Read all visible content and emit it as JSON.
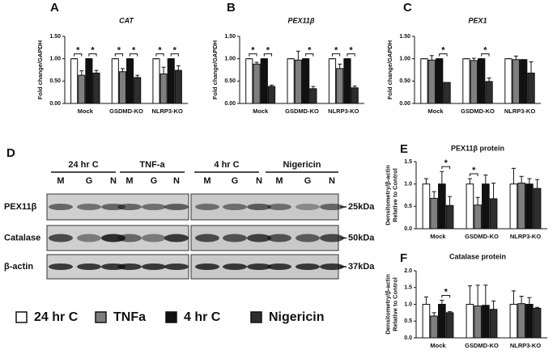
{
  "legend": [
    {
      "name": "24 hr C",
      "color": "#ffffff"
    },
    {
      "name": "TNFa",
      "color": "#7f7f7f"
    },
    {
      "name": "4 hr C",
      "color": "#111111"
    },
    {
      "name": "Nigericin",
      "color": "#2e2e2e"
    }
  ],
  "blot": {
    "panel": "D",
    "groups": [
      "24 hr C",
      "TNF-a",
      "4 hr C",
      "Nigericin"
    ],
    "lanes": [
      "M",
      "G",
      "N",
      "M",
      "G",
      "N",
      "M",
      "G",
      "N",
      "M",
      "G",
      "N"
    ],
    "rows": [
      "PEX11β",
      "Catalase",
      "β-actin"
    ],
    "markers": [
      "25kDa",
      "50kDa",
      "37kDa"
    ]
  },
  "chart_data": [
    {
      "type": "bar",
      "panel": "A",
      "title": "CAT",
      "title_italic": true,
      "ylabel": [
        "Fold change/GAPDH"
      ],
      "categories": [
        "Mock",
        "GSDMD-KO",
        "NLRP3-KO"
      ],
      "ylim": [
        0,
        1.5
      ],
      "yticks": [
        {
          "value": 0,
          "label": "0.00"
        },
        {
          "value": 0.5,
          "label": "0.50"
        },
        {
          "value": 1,
          "label": "1.00"
        },
        {
          "value": 1.5,
          "label": "1.50"
        }
      ],
      "series": [
        {
          "values": [
            1,
            1,
            1
          ],
          "errors": [
            0,
            0,
            0
          ]
        },
        {
          "values": [
            0.63,
            0.71,
            0.66
          ],
          "errors": [
            0.1,
            0.07,
            0.15
          ]
        },
        {
          "values": [
            1,
            1,
            1
          ],
          "errors": [
            0,
            0,
            0
          ]
        },
        {
          "values": [
            0.68,
            0.58,
            0.74
          ],
          "errors": [
            0.06,
            0.05,
            0.1
          ]
        }
      ],
      "annotations": [
        {
          "label": "*",
          "group": 0,
          "bars": [
            0,
            1
          ]
        },
        {
          "label": "*",
          "group": 0,
          "bars": [
            2,
            3
          ]
        },
        {
          "label": "*",
          "group": 1,
          "bars": [
            0,
            1
          ]
        },
        {
          "label": "*",
          "group": 1,
          "bars": [
            2,
            3
          ]
        },
        {
          "label": "*",
          "group": 2,
          "bars": [
            0,
            1
          ]
        },
        {
          "label": "*",
          "group": 2,
          "bars": [
            2,
            3
          ]
        }
      ]
    },
    {
      "type": "bar",
      "panel": "B",
      "title": "PEX11β",
      "title_italic": true,
      "ylabel": [
        "Fold change/GAPDH"
      ],
      "categories": [
        "Mock",
        "GSDMD-KO",
        "NLRP3-KO"
      ],
      "ylim": [
        0,
        1.5
      ],
      "yticks": [
        {
          "value": 0,
          "label": "0.00"
        },
        {
          "value": 0.5,
          "label": "0.50"
        },
        {
          "value": 1,
          "label": "1.00"
        },
        {
          "value": 1.5,
          "label": "1.50"
        }
      ],
      "series": [
        {
          "values": [
            1,
            1,
            1
          ],
          "errors": [
            0,
            0,
            0
          ]
        },
        {
          "values": [
            0.88,
            0.97,
            0.78
          ],
          "errors": [
            0.04,
            0.2,
            0.1
          ]
        },
        {
          "values": [
            1,
            1,
            1
          ],
          "errors": [
            0,
            0,
            0
          ]
        },
        {
          "values": [
            0.38,
            0.33,
            0.35
          ],
          "errors": [
            0.03,
            0.05,
            0.04
          ]
        }
      ],
      "annotations": [
        {
          "label": "*",
          "group": 0,
          "bars": [
            0,
            1
          ]
        },
        {
          "label": "*",
          "group": 0,
          "bars": [
            2,
            3
          ]
        },
        {
          "label": "*",
          "group": 1,
          "bars": [
            2,
            3
          ]
        },
        {
          "label": "*",
          "group": 2,
          "bars": [
            0,
            1
          ]
        },
        {
          "label": "*",
          "group": 2,
          "bars": [
            2,
            3
          ]
        }
      ]
    },
    {
      "type": "bar",
      "panel": "C",
      "title": "PEX1",
      "title_italic": true,
      "ylabel": [
        "Fold change/GAPDH"
      ],
      "categories": [
        "Mock",
        "GSDMD-KO",
        "NLRP3-KO"
      ],
      "ylim": [
        0,
        1.5
      ],
      "yticks": [
        {
          "value": 0,
          "label": "0.00"
        },
        {
          "value": 0.5,
          "label": "0.50"
        },
        {
          "value": 1,
          "label": "1.00"
        },
        {
          "value": 1.5,
          "label": "1.50"
        }
      ],
      "series": [
        {
          "values": [
            1,
            1,
            1
          ],
          "errors": [
            0,
            0,
            0
          ]
        },
        {
          "values": [
            0.97,
            0.96,
            0.98
          ],
          "errors": [
            0.1,
            0.05,
            0.08
          ]
        },
        {
          "values": [
            1,
            1,
            0.98
          ],
          "errors": [
            0,
            0,
            0
          ]
        },
        {
          "values": [
            0.47,
            0.49,
            0.68
          ],
          "errors": [
            0,
            0.08,
            0.25
          ]
        }
      ],
      "annotations": [
        {
          "label": "*",
          "group": 0,
          "bars": [
            2,
            3
          ]
        },
        {
          "label": "*",
          "group": 1,
          "bars": [
            2,
            3
          ]
        }
      ]
    },
    {
      "type": "bar",
      "panel": "E",
      "title": "PEX11β protein",
      "title_italic": false,
      "ylabel": [
        "Densitometry/β-actin",
        "Relative to Control"
      ],
      "categories": [
        "Mock",
        "GSDMD-KO",
        "NLRP3-KO"
      ],
      "ylim": [
        0,
        1.5
      ],
      "yticks": [
        {
          "value": 0,
          "label": "0.0"
        },
        {
          "value": 0.5,
          "label": "0.5"
        },
        {
          "value": 1,
          "label": "1.0"
        },
        {
          "value": 1.5,
          "label": "1.5"
        }
      ],
      "series": [
        {
          "values": [
            1,
            1,
            1
          ],
          "errors": [
            0.12,
            0.12,
            0.35
          ]
        },
        {
          "values": [
            0.68,
            0.53,
            1.02
          ],
          "errors": [
            0.15,
            0.17,
            0.15
          ]
        },
        {
          "values": [
            1,
            1,
            1
          ],
          "errors": [
            0.28,
            0.2,
            0.12
          ]
        },
        {
          "values": [
            0.52,
            0.67,
            0.9
          ],
          "errors": [
            0.2,
            0.35,
            0.2
          ]
        }
      ],
      "annotations": [
        {
          "label": "*",
          "group": 0,
          "bars": [
            2,
            3
          ]
        },
        {
          "label": "*",
          "group": 1,
          "bars": [
            0,
            1
          ]
        }
      ]
    },
    {
      "type": "bar",
      "panel": "F",
      "title": "Catalase protein",
      "title_italic": false,
      "ylabel": [
        "Densitometry/β-actin",
        "Relative to Control"
      ],
      "categories": [
        "Mock",
        "GSDMD-KO",
        "NLRP3-KO"
      ],
      "ylim": [
        0,
        2
      ],
      "yticks": [
        {
          "value": 0,
          "label": "0.0"
        },
        {
          "value": 0.5,
          "label": "0.5"
        },
        {
          "value": 1,
          "label": "1.0"
        },
        {
          "value": 1.5,
          "label": "1.5"
        },
        {
          "value": 2,
          "label": "2.0"
        }
      ],
      "series": [
        {
          "values": [
            1,
            1,
            1
          ],
          "errors": [
            0.22,
            0.55,
            0.4
          ]
        },
        {
          "values": [
            0.65,
            0.95,
            1.02
          ],
          "errors": [
            0.1,
            0.62,
            0.22
          ]
        },
        {
          "values": [
            1,
            0.97,
            1
          ],
          "errors": [
            0.12,
            0.6,
            0.2
          ]
        },
        {
          "values": [
            0.75,
            0.85,
            0.88
          ],
          "errors": [
            0.03,
            0.25,
            0.03
          ]
        }
      ],
      "annotations": [
        {
          "label": "*",
          "group": 0,
          "bars": [
            2,
            3
          ]
        }
      ]
    }
  ]
}
